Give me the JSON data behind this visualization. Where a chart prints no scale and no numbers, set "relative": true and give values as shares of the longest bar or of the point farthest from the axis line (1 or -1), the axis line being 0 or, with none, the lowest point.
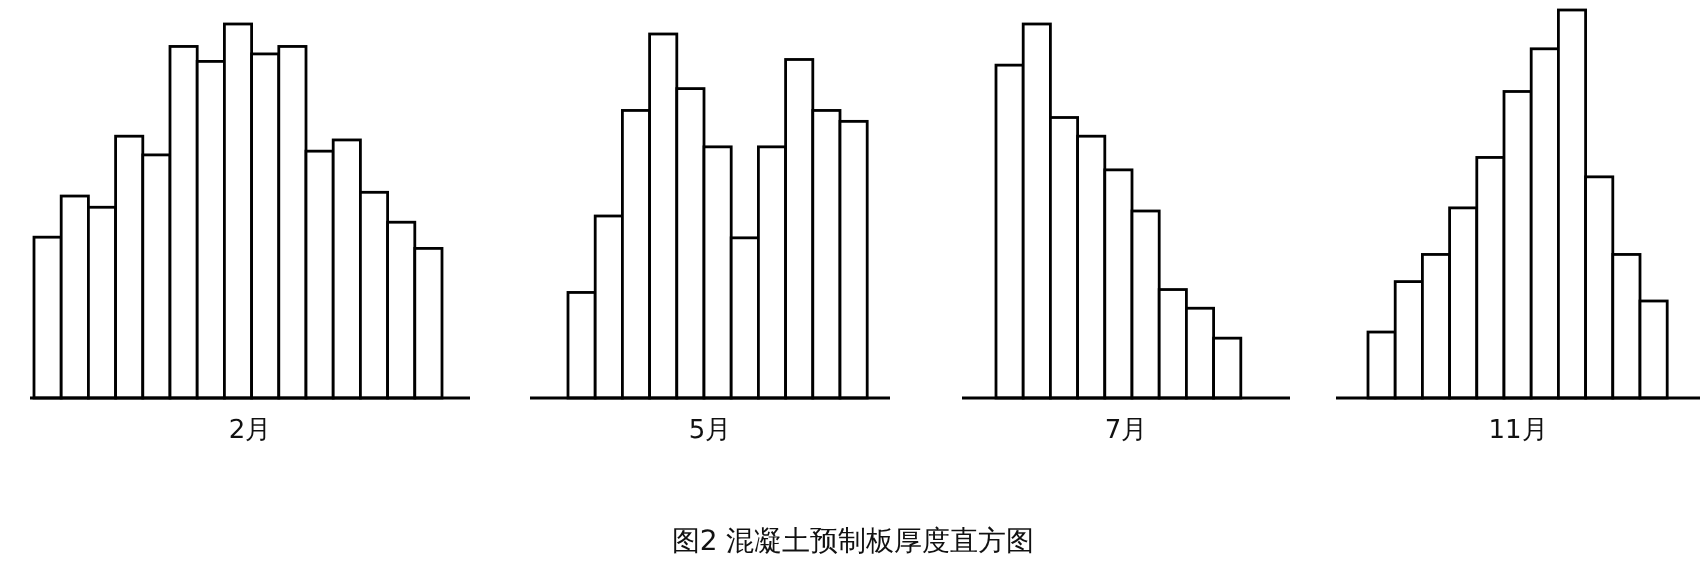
{
  "chart_data": [
    {
      "type": "bar",
      "relative": true,
      "xlabel": "2月",
      "color": "#ffffff",
      "categories": [
        null,
        null,
        null,
        null,
        null,
        null,
        null,
        null,
        null,
        null,
        null,
        null,
        null,
        null,
        null
      ],
      "values": [
        0.43,
        0.54,
        0.51,
        0.7,
        0.65,
        0.94,
        0.9,
        1,
        0.92,
        0.94,
        0.66,
        0.69,
        0.55,
        0.47,
        0.4
      ]
    },
    {
      "type": "bar",
      "relative": true,
      "xlabel": "5月",
      "color": "#ffffff",
      "categories": [
        null,
        null,
        null,
        null,
        null,
        null,
        null,
        null,
        null,
        null,
        null
      ],
      "values": [
        0.29,
        0.5,
        0.79,
        1,
        0.85,
        0.69,
        0.44,
        0.69,
        0.93,
        0.79,
        0.76
      ]
    },
    {
      "type": "bar",
      "relative": true,
      "xlabel": "7月",
      "color": "#ffffff",
      "categories": [
        null,
        null,
        null,
        null,
        null,
        null,
        null,
        null,
        null
      ],
      "values": [
        0.89,
        1,
        0.75,
        0.7,
        0.61,
        0.5,
        0.29,
        0.24,
        0.16
      ]
    },
    {
      "type": "bar",
      "relative": true,
      "xlabel": "11月",
      "color": "#ffffff",
      "categories": [
        null,
        null,
        null,
        null,
        null,
        null,
        null,
        null,
        null,
        null,
        null
      ],
      "values": [
        0.17,
        0.3,
        0.37,
        0.49,
        0.62,
        0.79,
        0.9,
        1,
        0.57,
        0.37,
        0.25
      ]
    },
    {
      "type": "other",
      "title": "图2 混凝土预制板厚度直方图"
    }
  ]
}
